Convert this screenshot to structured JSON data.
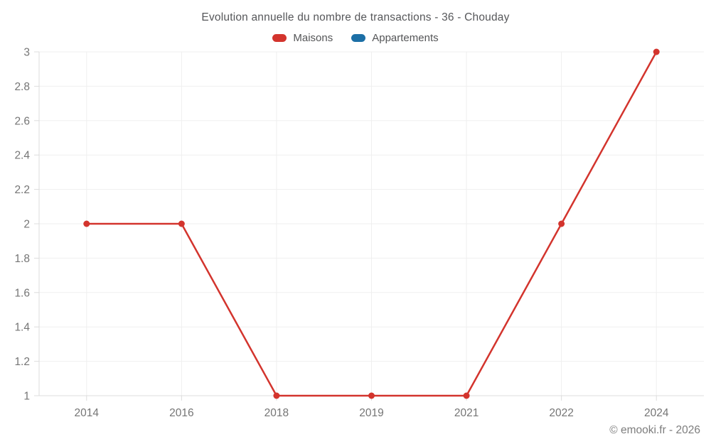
{
  "chart_data": {
    "type": "line",
    "title": "Evolution annuelle du nombre de transactions - 36 - Chouday",
    "categories": [
      "2014",
      "2016",
      "2018",
      "2019",
      "2021",
      "2022",
      "2024"
    ],
    "series": [
      {
        "name": "Maisons",
        "color": "#d3342d",
        "values": [
          2,
          2,
          1,
          1,
          1,
          2,
          3
        ]
      },
      {
        "name": "Appartements",
        "color": "#1c6fa6",
        "values": []
      }
    ],
    "xlabel": "",
    "ylabel": "",
    "ylim": [
      1,
      3
    ],
    "yticks": [
      1,
      1.2,
      1.4,
      1.6,
      1.8,
      2,
      2.2,
      2.4,
      2.6,
      2.8,
      3
    ],
    "grid": true,
    "legend_position": "top"
  },
  "footer": {
    "copyright": "© emooki.fr - 2026"
  },
  "colors": {
    "grid_line": "#efefef",
    "axis_line": "#dcdcdc",
    "tick_label": "#757575"
  }
}
